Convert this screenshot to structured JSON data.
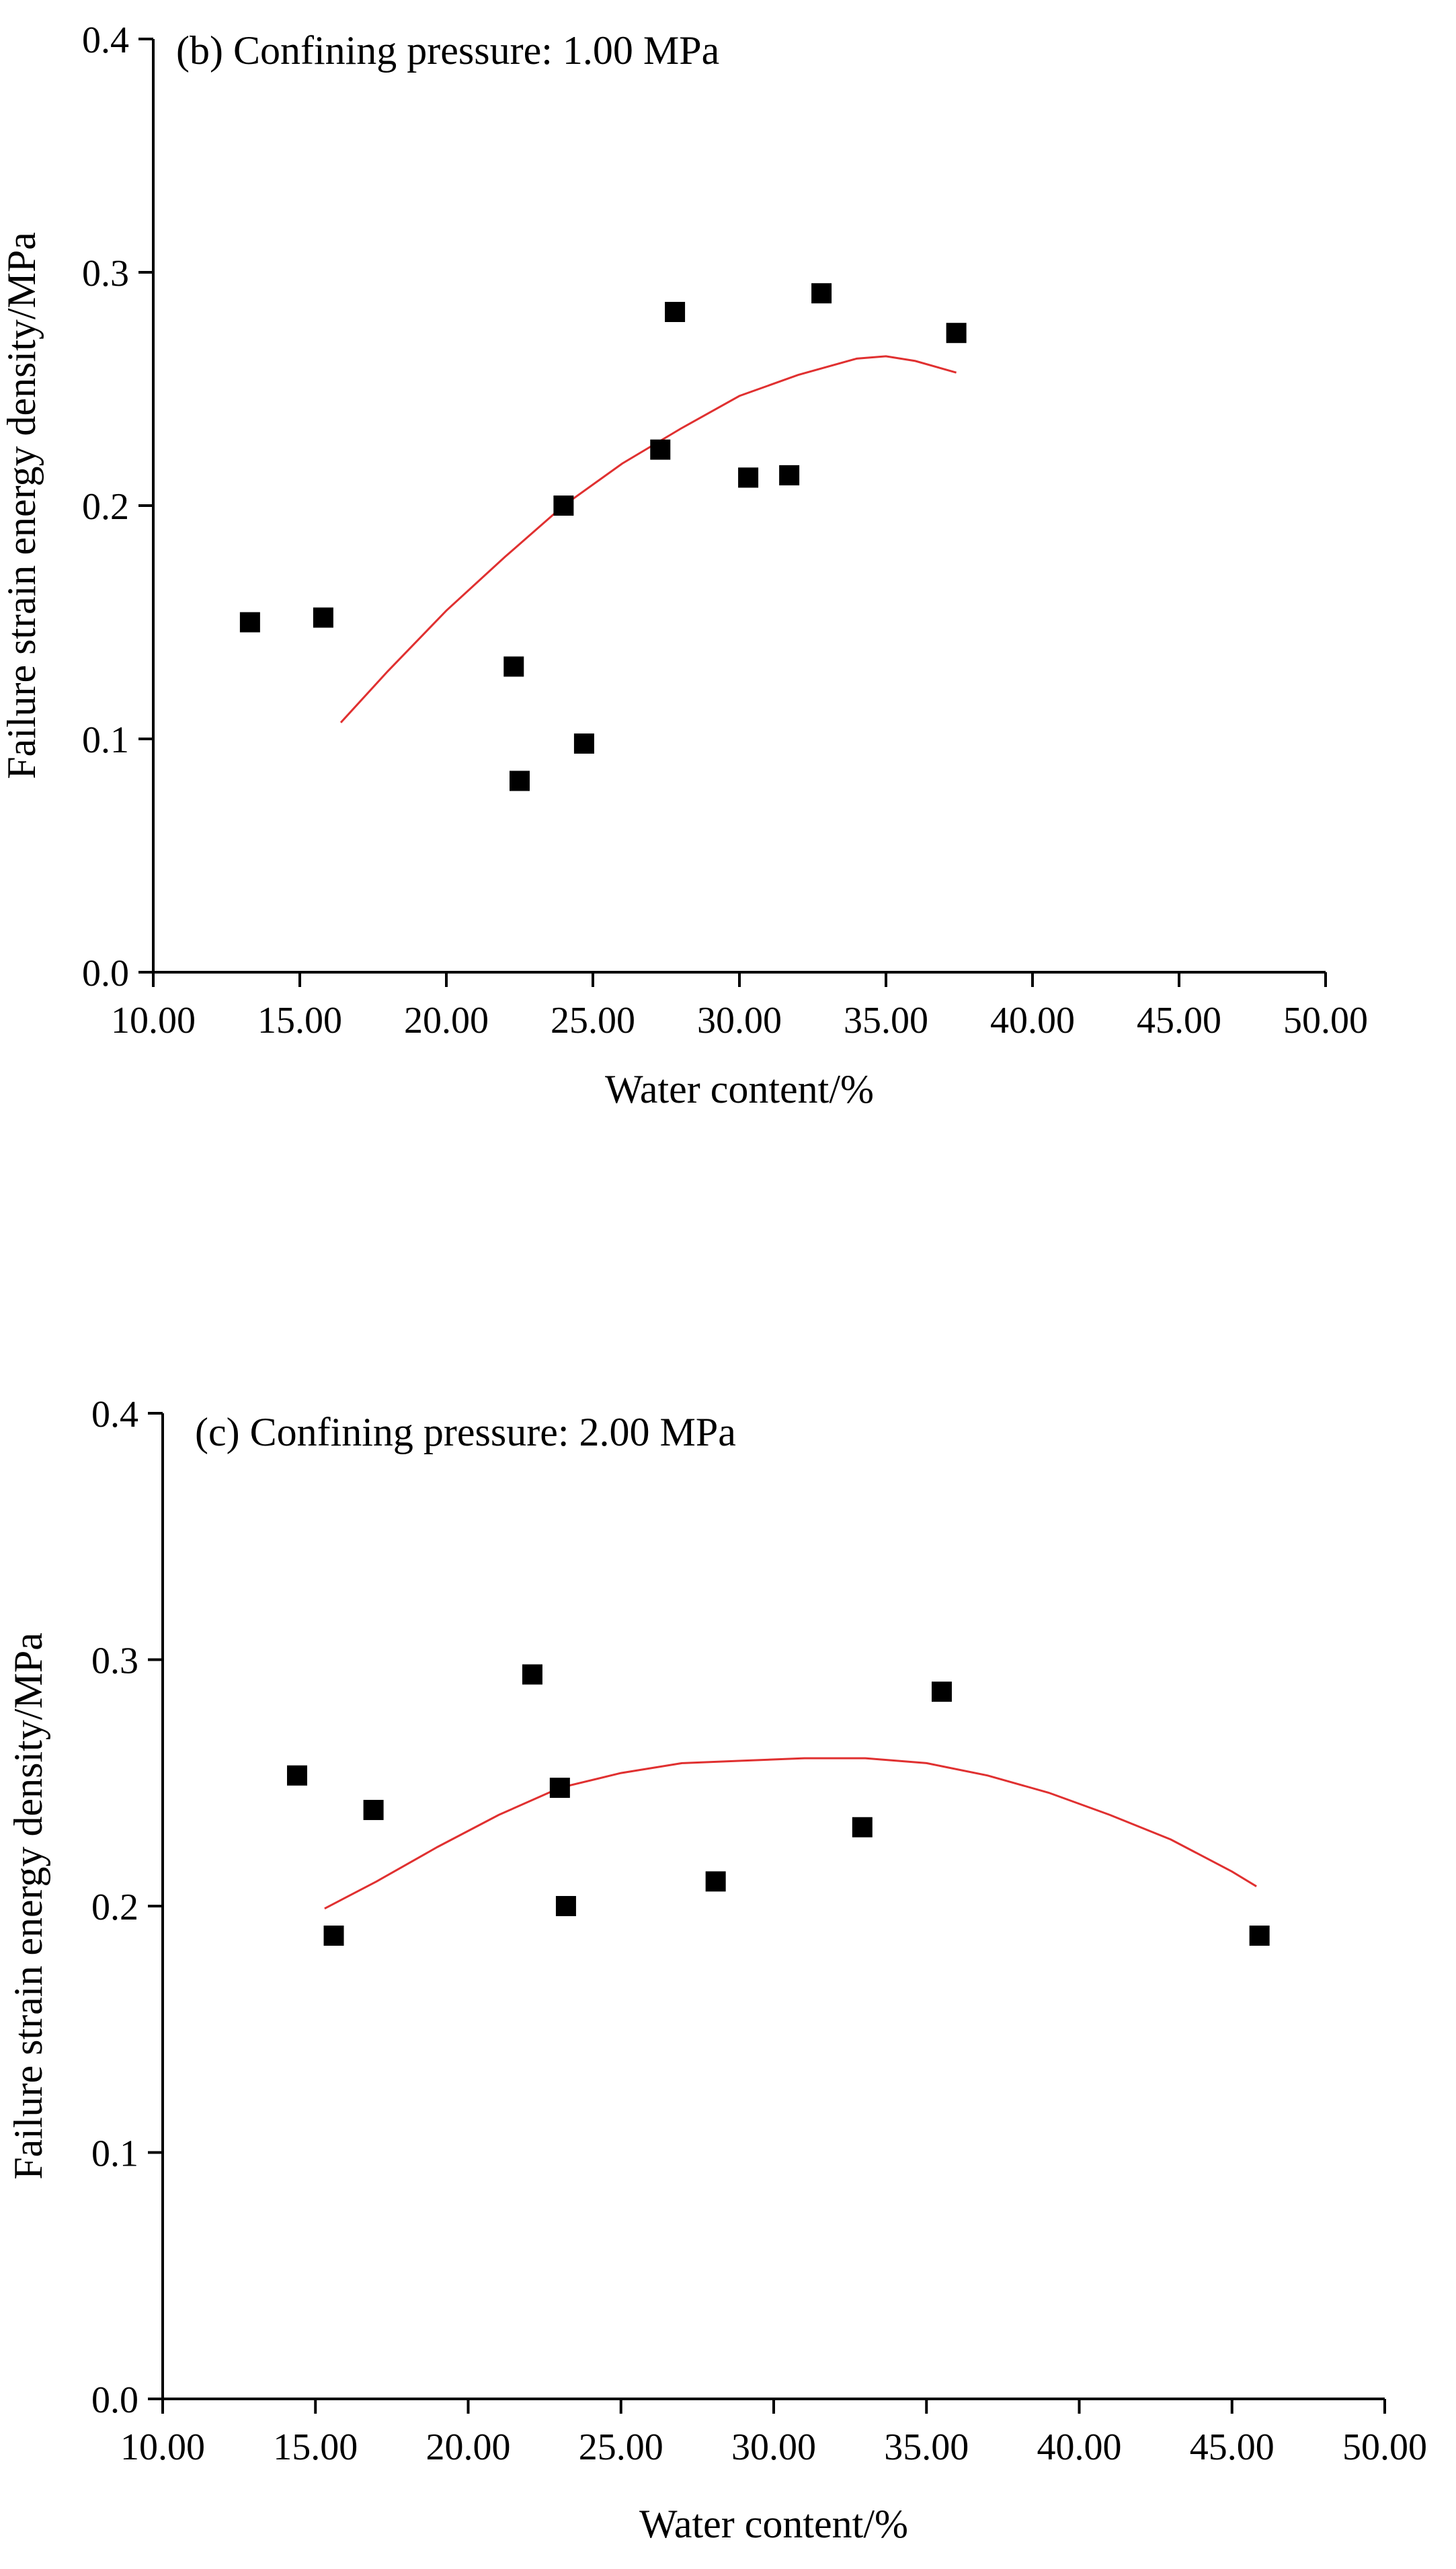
{
  "chart_data": [
    {
      "type": "scatter",
      "title": "(b) Confining pressure: 1.00 MPa",
      "xlabel": "Water content/%",
      "ylabel": "Failure strain energy density/MPa",
      "xlim": [
        10,
        50
      ],
      "ylim": [
        0,
        0.4
      ],
      "x_ticks": [
        "10.00",
        "15.00",
        "20.00",
        "25.00",
        "30.00",
        "35.00",
        "40.00",
        "45.00",
        "50.00"
      ],
      "y_ticks": [
        "0.0",
        "0.1",
        "0.2",
        "0.3",
        "0.4"
      ],
      "grid": false,
      "series": [
        {
          "name": "Measured",
          "marker": "square",
          "color": "#000000",
          "points": [
            [
              13.3,
              0.15
            ],
            [
              15.8,
              0.152
            ],
            [
              22.3,
              0.131
            ],
            [
              22.5,
              0.082
            ],
            [
              24.0,
              0.2
            ],
            [
              24.7,
              0.098
            ],
            [
              27.3,
              0.224
            ],
            [
              27.8,
              0.283
            ],
            [
              30.3,
              0.212
            ],
            [
              31.7,
              0.213
            ],
            [
              32.8,
              0.291
            ],
            [
              37.4,
              0.274
            ]
          ]
        },
        {
          "name": "Fit",
          "line": true,
          "color": "#e03030",
          "points": [
            [
              16.4,
              0.107
            ],
            [
              18,
              0.129
            ],
            [
              20,
              0.155
            ],
            [
              22,
              0.178
            ],
            [
              24,
              0.2
            ],
            [
              26,
              0.218
            ],
            [
              28,
              0.233
            ],
            [
              30,
              0.247
            ],
            [
              32,
              0.256
            ],
            [
              34,
              0.263
            ],
            [
              35,
              0.264
            ],
            [
              36,
              0.262
            ],
            [
              37.4,
              0.257
            ]
          ]
        }
      ]
    },
    {
      "type": "scatter",
      "title": "(c) Confining pressure: 2.00 MPa",
      "xlabel": "Water content/%",
      "ylabel": "Failure strain energy density/MPa",
      "xlim": [
        10,
        50
      ],
      "ylim": [
        0,
        0.4
      ],
      "x_ticks": [
        "10.00",
        "15.00",
        "20.00",
        "25.00",
        "30.00",
        "35.00",
        "40.00",
        "45.00",
        "50.00"
      ],
      "y_ticks": [
        "0.0",
        "0.1",
        "0.2",
        "0.3",
        "0.4"
      ],
      "grid": false,
      "series": [
        {
          "name": "Measured",
          "marker": "square",
          "color": "#000000",
          "points": [
            [
              14.4,
              0.253
            ],
            [
              15.6,
              0.188
            ],
            [
              16.9,
              0.239
            ],
            [
              22.1,
              0.294
            ],
            [
              23.0,
              0.248
            ],
            [
              23.2,
              0.2
            ],
            [
              28.1,
              0.21
            ],
            [
              32.9,
              0.232
            ],
            [
              35.5,
              0.287
            ],
            [
              45.9,
              0.188
            ]
          ]
        },
        {
          "name": "Fit",
          "line": true,
          "color": "#e03030",
          "points": [
            [
              15.3,
              0.199
            ],
            [
              17,
              0.21
            ],
            [
              19,
              0.224
            ],
            [
              21,
              0.237
            ],
            [
              23,
              0.248
            ],
            [
              25,
              0.254
            ],
            [
              27,
              0.258
            ],
            [
              29,
              0.259
            ],
            [
              31,
              0.26
            ],
            [
              33,
              0.26
            ],
            [
              35,
              0.258
            ],
            [
              37,
              0.253
            ],
            [
              39,
              0.246
            ],
            [
              41,
              0.237
            ],
            [
              43,
              0.227
            ],
            [
              45,
              0.214
            ],
            [
              45.8,
              0.208
            ]
          ]
        }
      ]
    }
  ]
}
